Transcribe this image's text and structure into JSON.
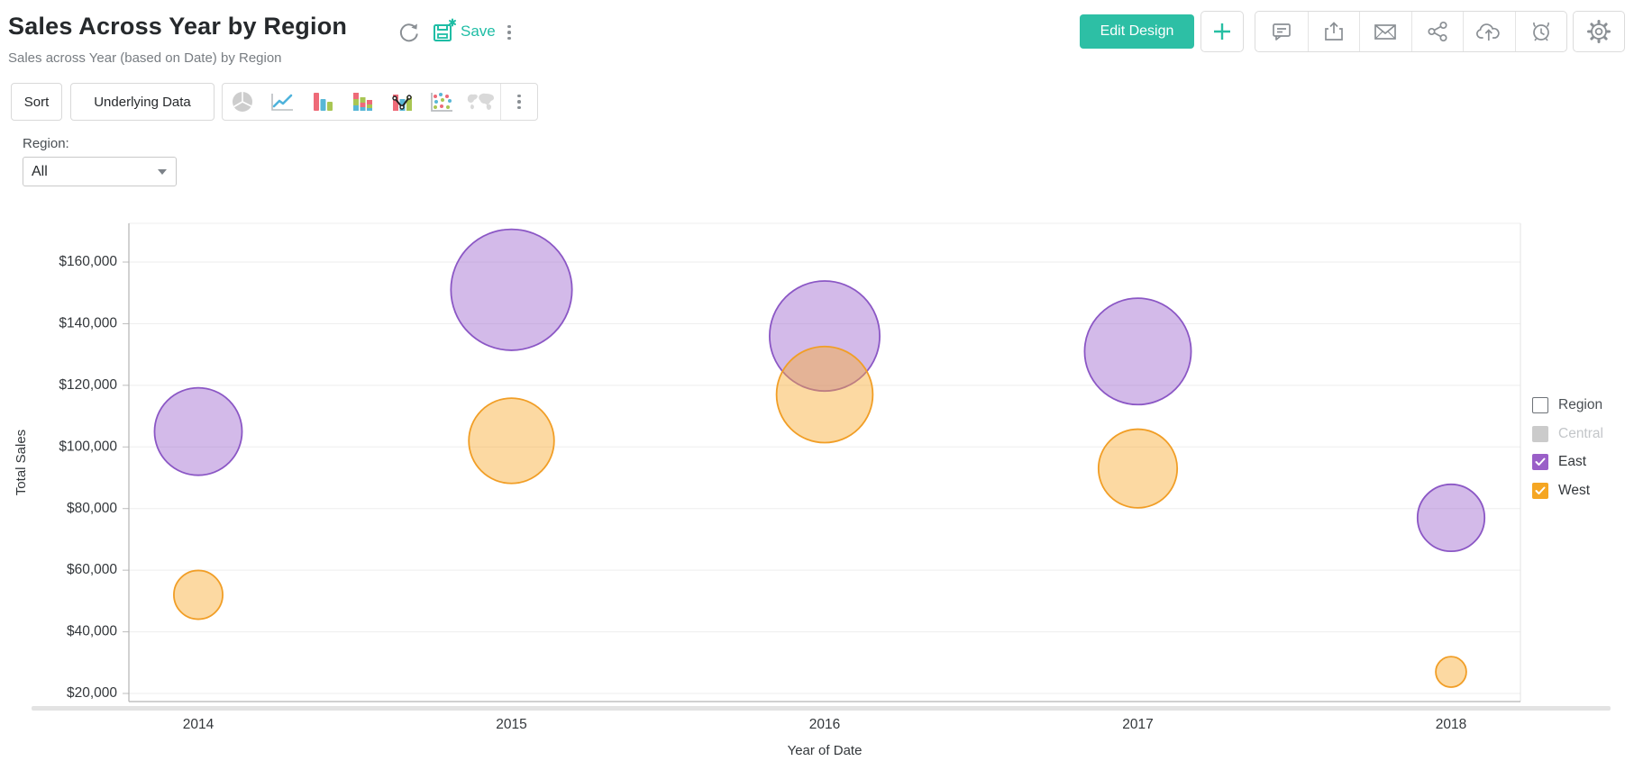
{
  "header": {
    "title": "Sales Across Year by Region",
    "subtitle": "Sales across Year (based on Date) by Region",
    "save_label": "Save",
    "edit_design_label": "Edit Design",
    "accent_color": "#2dbfa5"
  },
  "toolbar": {
    "sort_label": "Sort",
    "underlying_data_label": "Underlying Data",
    "chart_type_icons": [
      "pie-chart-icon",
      "line-chart-icon",
      "bar-chart-icon",
      "stacked-bar-chart-icon",
      "combo-chart-icon",
      "scatter-chart-icon",
      "map-chart-icon"
    ]
  },
  "header_icons": [
    "comment-icon",
    "export-icon",
    "email-icon",
    "share-icon",
    "cloud-upload-icon",
    "alert-icon",
    "settings-icon"
  ],
  "filter": {
    "label": "Region:",
    "value": "All"
  },
  "legend": {
    "title": "Region",
    "items": [
      {
        "label": "Central",
        "color": "#cbcbcb",
        "checked": false,
        "text_color": "#c3c6c9"
      },
      {
        "label": "East",
        "color": "#9a5fc8",
        "checked": true,
        "text_color": "#33373b"
      },
      {
        "label": "West",
        "color": "#f5a623",
        "checked": true,
        "text_color": "#33373b"
      }
    ]
  },
  "chart_data": {
    "type": "scatter",
    "subtype": "bubble",
    "title": "Sales Across Year by Region",
    "xlabel": "Year of Date",
    "ylabel": "Total Sales",
    "categories": [
      "2014",
      "2015",
      "2016",
      "2017",
      "2018"
    ],
    "series": [
      {
        "name": "East",
        "stroke": "#8b57c5",
        "fill": "rgba(155,99,205,0.44)",
        "values": [
          105000,
          151000,
          136000,
          131000,
          77000
        ]
      },
      {
        "name": "West",
        "stroke": "#f19e26",
        "fill": "rgba(248,173,52,0.46)",
        "values": [
          52000,
          102000,
          117000,
          93000,
          27000
        ]
      }
    ],
    "ylim": [
      20000,
      160000
    ],
    "y_tick_step": 20000,
    "y_tick_labels": [
      "$20,000",
      "$40,000",
      "$60,000",
      "$80,000",
      "$100,000",
      "$120,000",
      "$140,000",
      "$160,000"
    ],
    "grid": "horizontal",
    "legend_position": "right",
    "bubble_size_encoding": "Total Sales (radius proportional to value)"
  }
}
